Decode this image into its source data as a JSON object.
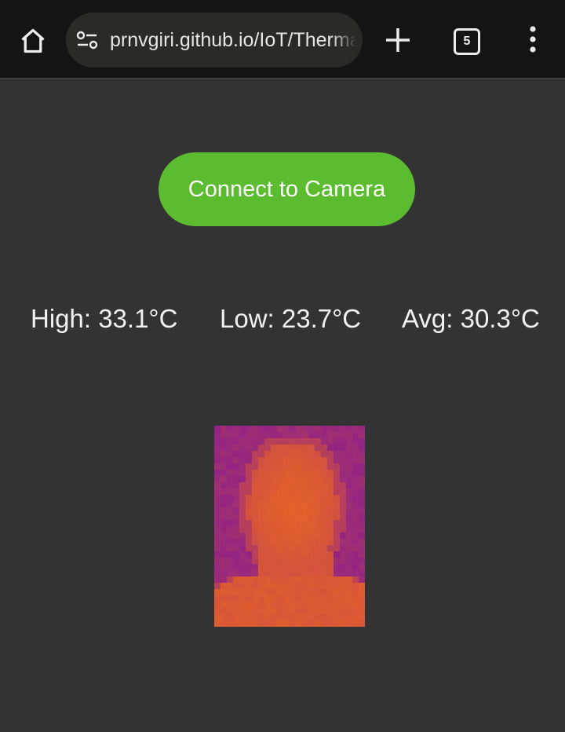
{
  "browser": {
    "url": "prnvgiri.github.io/IoT/Thermal",
    "tab_count": "5",
    "icons": [
      "home-icon",
      "tune-icon",
      "plus-icon",
      "tabs-icon",
      "more-vert-icon"
    ]
  },
  "main": {
    "connect_label": "Connect to Camera",
    "stats": {
      "high": "High: 33.1°C",
      "low": "Low: 23.7°C",
      "avg": "Avg: 30.3°C"
    }
  },
  "colors": {
    "background": "#333333",
    "toolbar": "#141414",
    "button": "#5cbc2f",
    "thermal_cold": "#8a1e8c",
    "thermal_hot": "#e5602a"
  }
}
